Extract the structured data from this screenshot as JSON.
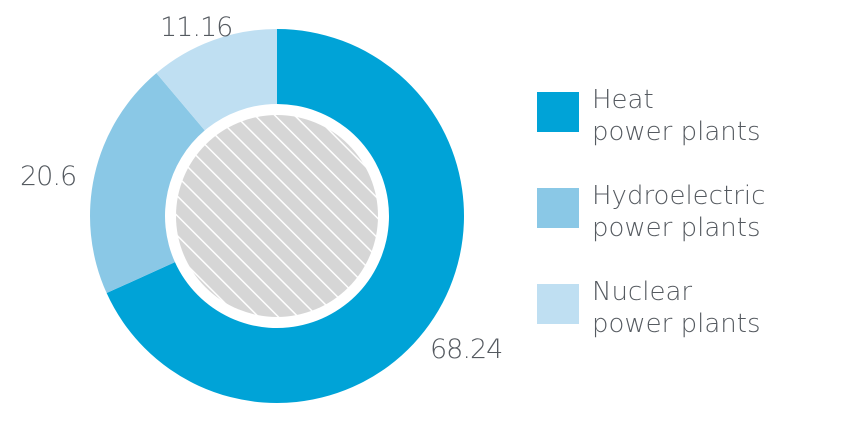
{
  "chart_data": {
    "type": "donut",
    "series": [
      {
        "name_lines": [
          "Heat",
          "power plants"
        ],
        "value": 68.24,
        "value_label": "68.24",
        "color": "#00a3d7"
      },
      {
        "name_lines": [
          "Hydroelectric",
          "power plants"
        ],
        "value": 20.6,
        "value_label": "20.6",
        "color": "#8ac8e6"
      },
      {
        "name_lines": [
          "Nuclear",
          "power plants"
        ],
        "value": 11.16,
        "value_label": "11.16",
        "color": "#bfdff2"
      }
    ],
    "start": "12 o'clock, clockwise",
    "legend_position": "right",
    "center_fill": "gray diagonal hatch"
  }
}
